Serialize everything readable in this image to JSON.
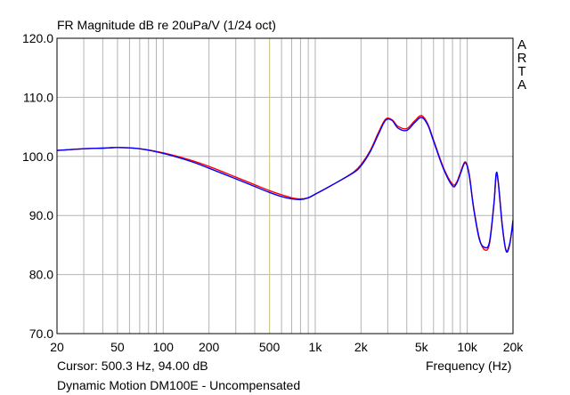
{
  "header": {
    "title": "FR Magnitude dB re 20uPa/V (1/24 oct)",
    "brand_letters": [
      "A",
      "R",
      "T",
      "A"
    ]
  },
  "footer": {
    "cursor_readout": "Cursor: 500.3 Hz, 94.00 dB",
    "device_label": "Dynamic Motion DM100E - Uncompensated"
  },
  "colors": {
    "background": "#ffffff",
    "grid": "#b4b4b4",
    "cursor_line": "#cfcf8c",
    "series_left": "#ff0000",
    "series_right": "#0000ff"
  },
  "chart_data": {
    "type": "line",
    "title": "FR Magnitude dB re 20uPa/V (1/24 oct)",
    "xlabel": "Frequency (Hz)",
    "ylabel": "",
    "xscale": "log",
    "xlim": [
      20,
      20000
    ],
    "ylim": [
      70,
      120
    ],
    "grid": true,
    "legend": "none",
    "x_ticks": [
      20,
      50,
      100,
      200,
      500,
      1000,
      2000,
      5000,
      10000,
      20000
    ],
    "x_tick_labels": [
      "20",
      "50",
      "100",
      "200",
      "500",
      "1k",
      "2k",
      "5k",
      "10k",
      "20k"
    ],
    "y_ticks": [
      70,
      80,
      90,
      100,
      110,
      120
    ],
    "y_tick_labels": [
      "70.0",
      "80.0",
      "90.0",
      "100.0",
      "110.0",
      "120.0"
    ],
    "cursor_x": 500.3,
    "series": [
      {
        "color": "#ff0000",
        "points": [
          [
            20,
            101.0
          ],
          [
            30,
            101.3
          ],
          [
            40,
            101.4
          ],
          [
            50,
            101.5
          ],
          [
            70,
            101.3
          ],
          [
            100,
            100.6
          ],
          [
            150,
            99.4
          ],
          [
            200,
            98.3
          ],
          [
            300,
            96.5
          ],
          [
            400,
            95.2
          ],
          [
            500,
            94.2
          ],
          [
            600,
            93.5
          ],
          [
            700,
            93.0
          ],
          [
            800,
            92.8
          ],
          [
            900,
            93.0
          ],
          [
            1000,
            93.6
          ],
          [
            1200,
            94.7
          ],
          [
            1500,
            96.1
          ],
          [
            1800,
            97.4
          ],
          [
            2000,
            98.6
          ],
          [
            2300,
            101.0
          ],
          [
            2600,
            104.0
          ],
          [
            2900,
            106.3
          ],
          [
            3200,
            106.2
          ],
          [
            3500,
            105.1
          ],
          [
            4000,
            104.7
          ],
          [
            4500,
            106.0
          ],
          [
            5000,
            106.9
          ],
          [
            5500,
            105.5
          ],
          [
            6000,
            102.8
          ],
          [
            7000,
            98.0
          ],
          [
            8000,
            95.3
          ],
          [
            8500,
            95.6
          ],
          [
            9000,
            97.2
          ],
          [
            9700,
            99.1
          ],
          [
            10300,
            97.0
          ],
          [
            11000,
            91.5
          ],
          [
            12000,
            86.2
          ],
          [
            13000,
            84.2
          ],
          [
            14000,
            85.2
          ],
          [
            15000,
            92.0
          ],
          [
            15500,
            96.8
          ],
          [
            16000,
            95.5
          ],
          [
            17000,
            88.2
          ],
          [
            18000,
            84.1
          ],
          [
            19000,
            85.2
          ],
          [
            20000,
            88.8
          ]
        ]
      },
      {
        "color": "#0000ff",
        "points": [
          [
            20,
            101.0
          ],
          [
            30,
            101.3
          ],
          [
            40,
            101.4
          ],
          [
            50,
            101.5
          ],
          [
            70,
            101.3
          ],
          [
            100,
            100.5
          ],
          [
            150,
            99.2
          ],
          [
            200,
            98.0
          ],
          [
            300,
            96.2
          ],
          [
            400,
            94.9
          ],
          [
            500,
            93.9
          ],
          [
            600,
            93.2
          ],
          [
            700,
            92.8
          ],
          [
            800,
            92.7
          ],
          [
            900,
            93.0
          ],
          [
            1000,
            93.6
          ],
          [
            1200,
            94.7
          ],
          [
            1500,
            96.1
          ],
          [
            1800,
            97.3
          ],
          [
            2000,
            98.4
          ],
          [
            2300,
            100.8
          ],
          [
            2600,
            103.7
          ],
          [
            2900,
            106.1
          ],
          [
            3200,
            106.1
          ],
          [
            3500,
            104.8
          ],
          [
            4000,
            104.4
          ],
          [
            4500,
            105.7
          ],
          [
            5000,
            106.6
          ],
          [
            5500,
            105.3
          ],
          [
            6000,
            102.6
          ],
          [
            7000,
            97.8
          ],
          [
            8000,
            95.0
          ],
          [
            8500,
            95.4
          ],
          [
            9000,
            97.0
          ],
          [
            9700,
            98.9
          ],
          [
            10300,
            96.8
          ],
          [
            11000,
            91.3
          ],
          [
            12000,
            86.0
          ],
          [
            13000,
            84.6
          ],
          [
            14000,
            85.5
          ],
          [
            15000,
            92.2
          ],
          [
            15500,
            97.1
          ],
          [
            16000,
            95.7
          ],
          [
            17000,
            88.4
          ],
          [
            18000,
            84.0
          ],
          [
            19000,
            85.0
          ],
          [
            20000,
            89.2
          ]
        ]
      }
    ]
  }
}
